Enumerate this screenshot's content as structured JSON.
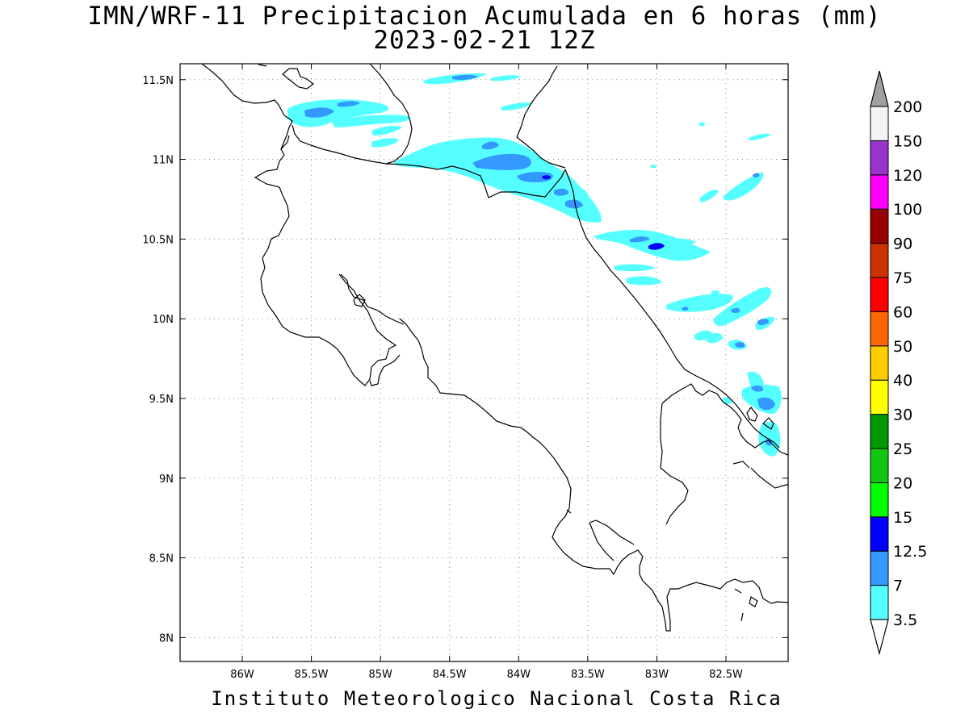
{
  "title_line1": "IMN/WRF-11 Precipitacion Acumulada en 6 horas (mm)",
  "title_line2": "2023-02-21 12Z",
  "footer": "Instituto Meteorologico Nacional Costa Rica",
  "map": {
    "lon_range": [
      -86.45,
      -82.05
    ],
    "lat_range": [
      7.85,
      11.6
    ],
    "lat_ticks": [
      {
        "value": 11.5,
        "label": "11.5N"
      },
      {
        "value": 11.0,
        "label": "11N"
      },
      {
        "value": 10.5,
        "label": "10.5N"
      },
      {
        "value": 10.0,
        "label": "10N"
      },
      {
        "value": 9.5,
        "label": "9.5N"
      },
      {
        "value": 9.0,
        "label": "9N"
      },
      {
        "value": 8.5,
        "label": "8.5N"
      },
      {
        "value": 8.0,
        "label": "8N"
      }
    ],
    "lon_ticks": [
      {
        "value": -86.0,
        "label": "86W"
      },
      {
        "value": -85.5,
        "label": "85.5W"
      },
      {
        "value": -85.0,
        "label": "85W"
      },
      {
        "value": -84.5,
        "label": "84.5W"
      },
      {
        "value": -84.0,
        "label": "84W"
      },
      {
        "value": -83.5,
        "label": "83.5W"
      },
      {
        "value": -83.0,
        "label": "83W"
      },
      {
        "value": -82.5,
        "label": "82.5W"
      }
    ],
    "grid": "dotted"
  },
  "colorbar": {
    "levels": [
      {
        "label": "3.5",
        "color": "#55ffff"
      },
      {
        "label": "7",
        "color": "#3399ff"
      },
      {
        "label": "12.5",
        "color": "#0000ff"
      },
      {
        "label": "15",
        "color": "#00ff00"
      },
      {
        "label": "20",
        "color": "#11c811"
      },
      {
        "label": "25",
        "color": "#009900"
      },
      {
        "label": "30",
        "color": "#ffff00"
      },
      {
        "label": "40",
        "color": "#ffcc00"
      },
      {
        "label": "50",
        "color": "#ff6600"
      },
      {
        "label": "60",
        "color": "#ff0000"
      },
      {
        "label": "75",
        "color": "#cc3300"
      },
      {
        "label": "90",
        "color": "#990000"
      },
      {
        "label": "100",
        "color": "#ff00ff"
      },
      {
        "label": "120",
        "color": "#9933cc"
      },
      {
        "label": "150",
        "color": "#f4f4f4"
      },
      {
        "label": "200",
        "color": "#a0a0a0"
      }
    ]
  },
  "chart_data": {
    "type": "heatmap",
    "title": "IMN/WRF-11 Precipitacion Acumulada en 6 horas (mm)",
    "subtitle": "2023-02-21 12Z",
    "xlabel": "",
    "ylabel": "",
    "xlim": [
      "86.45W",
      "82.05W"
    ],
    "ylim": [
      "7.85N",
      "11.6N"
    ],
    "units": "mm",
    "precip_cells": [
      {
        "lon": -85.4,
        "lat": 11.32,
        "value": 5
      },
      {
        "lon": -85.35,
        "lat": 11.27,
        "value": 8
      },
      {
        "lon": -85.05,
        "lat": 11.2,
        "value": 4
      },
      {
        "lon": -84.9,
        "lat": 11.18,
        "value": 4
      },
      {
        "lon": -84.25,
        "lat": 11.53,
        "value": 4
      },
      {
        "lon": -84.4,
        "lat": 11.0,
        "value": 5
      },
      {
        "lon": -84.05,
        "lat": 10.98,
        "value": 9
      },
      {
        "lon": -83.8,
        "lat": 10.88,
        "value": 10
      },
      {
        "lon": -83.55,
        "lat": 10.7,
        "value": 8
      },
      {
        "lon": -83.3,
        "lat": 10.65,
        "value": 4
      },
      {
        "lon": -83.08,
        "lat": 10.47,
        "value": 6
      },
      {
        "lon": -82.93,
        "lat": 10.45,
        "value": 13
      },
      {
        "lon": -82.7,
        "lat": 10.4,
        "value": 4
      },
      {
        "lon": -82.7,
        "lat": 10.78,
        "value": 4
      },
      {
        "lon": -82.35,
        "lat": 10.85,
        "value": 5
      },
      {
        "lon": -82.9,
        "lat": 10.25,
        "value": 4
      },
      {
        "lon": -82.6,
        "lat": 10.07,
        "value": 5
      },
      {
        "lon": -82.25,
        "lat": 10.08,
        "value": 6
      },
      {
        "lon": -82.45,
        "lat": 9.83,
        "value": 5
      },
      {
        "lon": -82.2,
        "lat": 9.5,
        "value": 9
      },
      {
        "lon": -82.12,
        "lat": 9.2,
        "value": 8
      }
    ]
  }
}
